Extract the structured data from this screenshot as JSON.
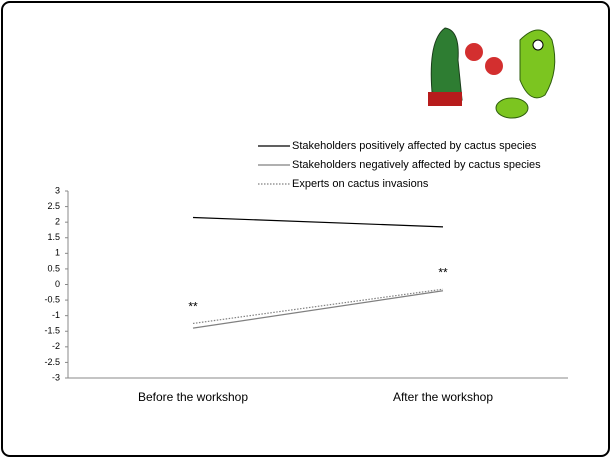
{
  "chart_data": {
    "type": "line",
    "categories": [
      "Before the workshop",
      "After the workshop"
    ],
    "series": [
      {
        "name": "Stakeholders positively affected by cactus species",
        "color": "#000000",
        "style": "solid",
        "values": [
          2.15,
          1.85
        ]
      },
      {
        "name": "Stakeholders negatively affected by cactus species",
        "color": "#808080",
        "style": "solid",
        "values": [
          -1.4,
          -0.2
        ]
      },
      {
        "name": "Experts on cactus invasions",
        "color": "#808080",
        "style": "dotted",
        "values": [
          -1.25,
          -0.15
        ]
      }
    ],
    "annotations": [
      "**",
      "**"
    ],
    "ylim": [
      -3,
      3
    ],
    "yticks": [
      -3,
      -2.5,
      -2,
      -1.5,
      -1,
      -0.5,
      0,
      0.5,
      1,
      1.5,
      2,
      2.5,
      3
    ],
    "grid": false
  }
}
